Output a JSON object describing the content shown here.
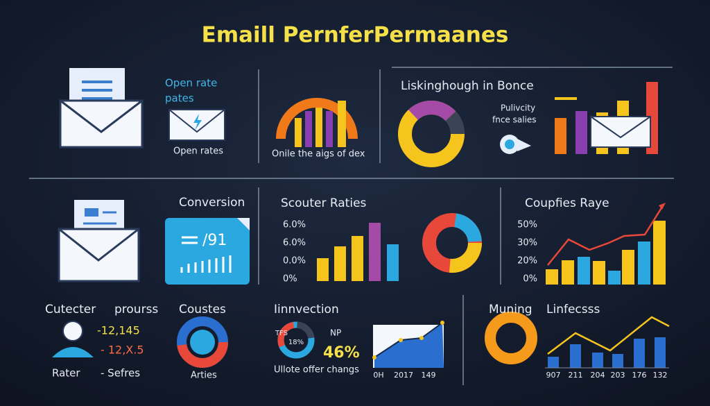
{
  "title": "Emaill PernferPermaanes",
  "panels": [
    {
      "label_line1": "Open rate",
      "label_line2": "pates",
      "caption": "Open rates"
    },
    {
      "caption": "Onile the aigs of dex"
    },
    {
      "title": "Liskinghough in Bonce",
      "note_line1": "Pulivcity",
      "note_line2": "fnce salies"
    },
    {
      "title": "Conversion",
      "box_text": "/91"
    },
    {
      "title": "Scouter Raties",
      "ticks": [
        "6.0%",
        "6.0%",
        "0.0%",
        "0%"
      ]
    },
    {
      "title": "Coupfies Raye",
      "ticks": [
        "50%",
        "30%",
        "20%",
        "0%"
      ]
    },
    {
      "title": "Cutecter",
      "subtitle": "prourss",
      "stat1": "-12,145",
      "stat2": "- 12,X.5",
      "footer_left": "Rater",
      "footer_right": "- Sefres"
    },
    {
      "title": "Coustes",
      "caption": "Arties"
    },
    {
      "title": "Iinnvection",
      "donut_label": "TFS",
      "donut_value": "18%",
      "kpi_label": "NP",
      "kpi_value": "46%",
      "caption": "Ullote offer changs",
      "x_labels": [
        "0H",
        "2017",
        "149"
      ]
    },
    {
      "title": "Muning",
      "subtitle": "Linfecsss",
      "x_labels": [
        "907",
        "211",
        "204",
        "203",
        "176",
        "132"
      ]
    }
  ]
}
